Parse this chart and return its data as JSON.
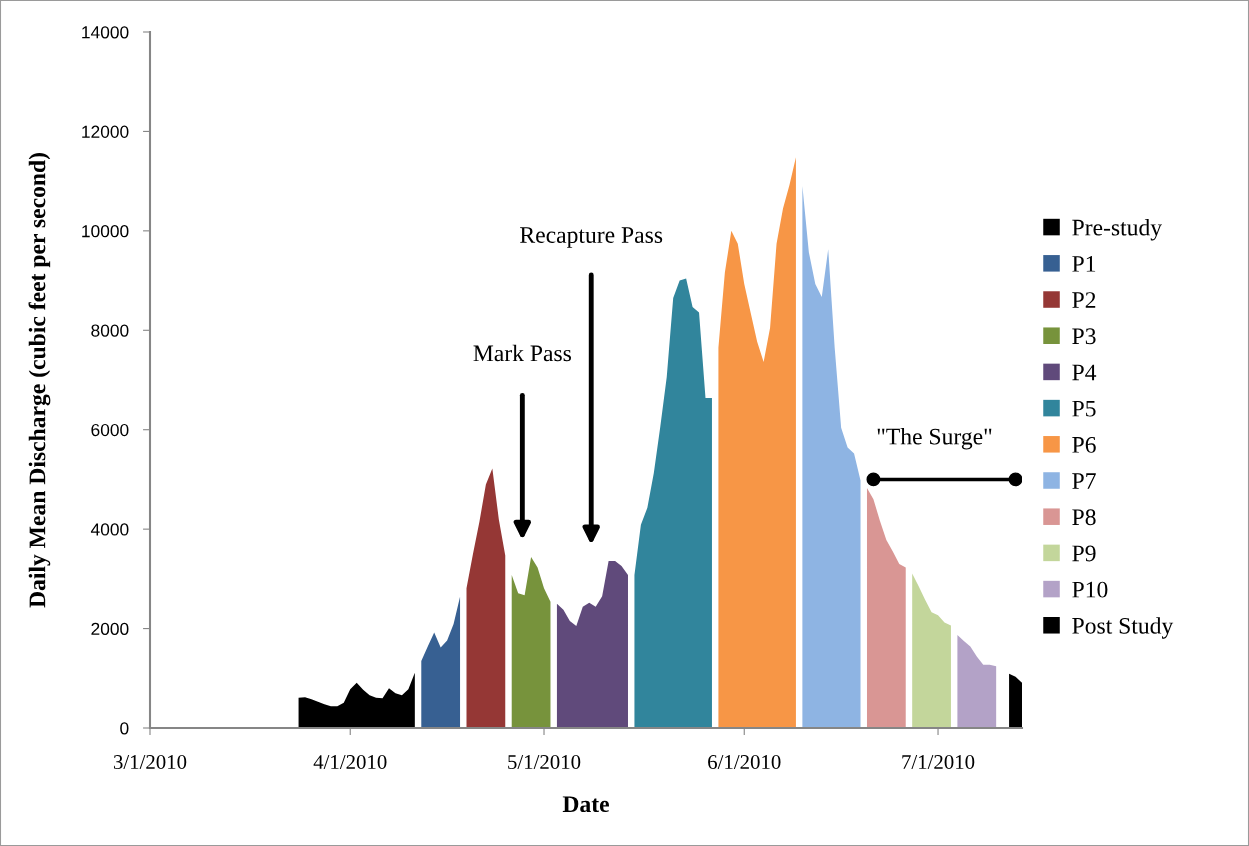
{
  "chart_data": {
    "type": "area",
    "xlabel": "Date",
    "ylabel": "Daily Mean Discharge (cubic feet per second)",
    "xlim": [
      "2010-03-01",
      "2010-07-14"
    ],
    "ylim": [
      0,
      14000
    ],
    "xticks": [
      {
        "value": "2010-03-01",
        "label": "3/1/2010"
      },
      {
        "value": "2010-04-01",
        "label": "4/1/2010"
      },
      {
        "value": "2010-05-01",
        "label": "5/1/2010"
      },
      {
        "value": "2010-06-01",
        "label": "6/1/2010"
      },
      {
        "value": "2010-07-01",
        "label": "7/1/2010"
      }
    ],
    "yticks": [
      0,
      2000,
      4000,
      6000,
      8000,
      10000,
      12000,
      14000
    ],
    "grid": false,
    "legend": "right",
    "annotations": [
      "Mark Pass",
      "Recapture Pass",
      {
        "text": "\"The Surge\"",
        "x": "2010-07-02",
        "y": 5000
      }
    ],
    "series": [
      {
        "name": "Pre-study",
        "color": "#000000",
        "x": [
          "2010-03-24",
          "2010-03-25",
          "2010-03-26",
          "2010-03-27",
          "2010-03-28",
          "2010-03-29",
          "2010-03-30",
          "2010-03-31",
          "2010-04-01",
          "2010-04-02",
          "2010-04-03",
          "2010-04-04",
          "2010-04-05",
          "2010-04-06",
          "2010-04-07",
          "2010-04-08",
          "2010-04-09",
          "2010-04-10",
          "2010-04-11"
        ],
        "values": [
          610,
          620,
          580,
          530,
          480,
          440,
          440,
          510,
          780,
          910,
          770,
          660,
          610,
          600,
          800,
          700,
          660,
          780,
          1110
        ]
      },
      {
        "name": "P1",
        "color": "#376092",
        "x": [
          "2010-04-12",
          "2010-04-13",
          "2010-04-14",
          "2010-04-15",
          "2010-04-16",
          "2010-04-17",
          "2010-04-18"
        ],
        "values": [
          1350,
          1640,
          1920,
          1620,
          1760,
          2090,
          2640
        ]
      },
      {
        "name": "P2",
        "color": "#953735",
        "x": [
          "2010-04-19",
          "2010-04-20",
          "2010-04-21",
          "2010-04-22",
          "2010-04-23",
          "2010-04-24",
          "2010-04-25"
        ],
        "values": [
          2810,
          3500,
          4150,
          4900,
          5220,
          4200,
          3470
        ]
      },
      {
        "name": "P3",
        "color": "#77933c",
        "x": [
          "2010-04-26",
          "2010-04-27",
          "2010-04-28",
          "2010-04-29",
          "2010-04-30",
          "2010-05-01",
          "2010-05-02"
        ],
        "values": [
          3080,
          2710,
          2670,
          3440,
          3230,
          2810,
          2540
        ]
      },
      {
        "name": "P4",
        "color": "#604a7b",
        "x": [
          "2010-05-03",
          "2010-05-04",
          "2010-05-05",
          "2010-05-06",
          "2010-05-07",
          "2010-05-08",
          "2010-05-09",
          "2010-05-10",
          "2010-05-11",
          "2010-05-12",
          "2010-05-13",
          "2010-05-14"
        ],
        "values": [
          2500,
          2380,
          2150,
          2050,
          2440,
          2520,
          2440,
          2650,
          3360,
          3360,
          3260,
          3080
        ]
      },
      {
        "name": "P5",
        "color": "#31859c",
        "x": [
          "2010-05-15",
          "2010-05-16",
          "2010-05-17",
          "2010-05-18",
          "2010-05-19",
          "2010-05-20",
          "2010-05-21",
          "2010-05-22",
          "2010-05-23",
          "2010-05-24",
          "2010-05-25",
          "2010-05-26",
          "2010-05-27"
        ],
        "values": [
          3080,
          4090,
          4430,
          5130,
          6060,
          7060,
          8650,
          9000,
          9040,
          8470,
          8360,
          6640,
          6640
        ]
      },
      {
        "name": "P6",
        "color": "#f79646",
        "x": [
          "2010-05-28",
          "2010-05-29",
          "2010-05-30",
          "2010-05-31",
          "2010-06-01",
          "2010-06-02",
          "2010-06-03",
          "2010-06-04",
          "2010-06-05",
          "2010-06-06",
          "2010-06-07",
          "2010-06-08",
          "2010-06-09"
        ],
        "values": [
          7650,
          9160,
          10000,
          9740,
          8930,
          8350,
          7770,
          7360,
          8050,
          9740,
          10450,
          10920,
          11480
        ]
      },
      {
        "name": "P7",
        "color": "#8eb4e3",
        "x": [
          "2010-06-10",
          "2010-06-11",
          "2010-06-12",
          "2010-06-13",
          "2010-06-14",
          "2010-06-15",
          "2010-06-16",
          "2010-06-17",
          "2010-06-18",
          "2010-06-19"
        ],
        "values": [
          10900,
          9570,
          8930,
          8670,
          9630,
          7650,
          6040,
          5640,
          5520,
          4980
        ]
      },
      {
        "name": "P8",
        "color": "#d99694",
        "x": [
          "2010-06-20",
          "2010-06-21",
          "2010-06-22",
          "2010-06-23",
          "2010-06-24",
          "2010-06-25",
          "2010-06-26"
        ],
        "values": [
          4830,
          4600,
          4170,
          3780,
          3550,
          3300,
          3230
        ]
      },
      {
        "name": "P9",
        "color": "#c3d69b",
        "x": [
          "2010-06-27",
          "2010-06-28",
          "2010-06-29",
          "2010-06-30",
          "2010-07-01",
          "2010-07-02",
          "2010-07-03"
        ],
        "values": [
          3110,
          2850,
          2580,
          2330,
          2270,
          2120,
          2060
        ]
      },
      {
        "name": "P10",
        "color": "#b3a2c7",
        "x": [
          "2010-07-04",
          "2010-07-05",
          "2010-07-06",
          "2010-07-07",
          "2010-07-08",
          "2010-07-09",
          "2010-07-10"
        ],
        "values": [
          1870,
          1750,
          1640,
          1440,
          1270,
          1270,
          1240
        ]
      },
      {
        "name": "Post Study",
        "color": "#000000",
        "x": [
          "2010-07-12",
          "2010-07-13",
          "2010-07-14"
        ],
        "values": [
          1090,
          1030,
          910
        ]
      },
      {
        "type": "line",
        "color": "#000000",
        "marker": "circle",
        "x": [
          "2010-06-21",
          "2010-07-13"
        ],
        "values": [
          5000,
          5000
        ]
      }
    ]
  }
}
